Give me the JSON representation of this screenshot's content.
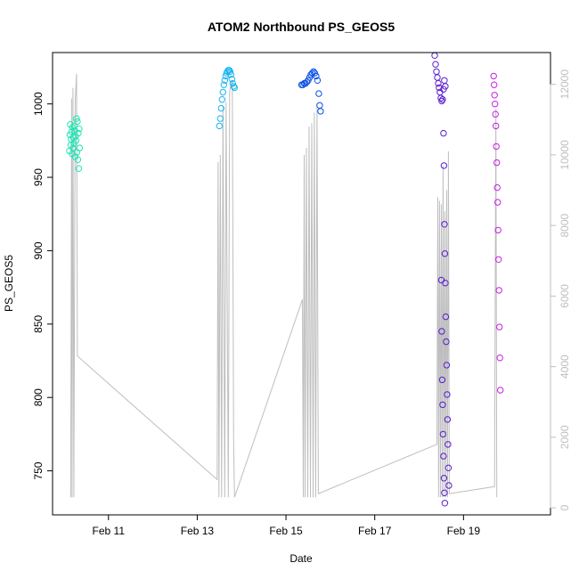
{
  "chart_data": {
    "type": "scatter",
    "title": "ATOM2 Northbound PS_GEOS5",
    "xlabel": "Date",
    "ylabel": "PS_GEOS5",
    "x_ticks": [
      {
        "label": "Feb 11",
        "value": 11.0
      },
      {
        "label": "Feb 13",
        "value": 13.0
      },
      {
        "label": "Feb 15",
        "value": 15.0
      },
      {
        "label": "Feb 17",
        "value": 17.0
      },
      {
        "label": "Feb 19",
        "value": 19.0
      }
    ],
    "xlim": [
      9.74,
      20.96
    ],
    "ylim": [
      720,
      1035
    ],
    "y_ticks": [
      {
        "label": "750",
        "value": 750
      },
      {
        "label": "800",
        "value": 800
      },
      {
        "label": "850",
        "value": 850
      },
      {
        "label": "900",
        "value": 900
      },
      {
        "label": "950",
        "value": 950
      },
      {
        "label": "1000",
        "value": 1000
      }
    ],
    "y2lim": [
      -200,
      12900
    ],
    "y2_ticks": [
      {
        "label": "0",
        "value": 0
      },
      {
        "label": "2000",
        "value": 2000
      },
      {
        "label": "4000",
        "value": 4000
      },
      {
        "label": "6000",
        "value": 6000
      },
      {
        "label": "8000",
        "value": 8000
      },
      {
        "label": "10000",
        "value": 10000
      },
      {
        "label": "12000",
        "value": 12000
      }
    ],
    "grid": false,
    "marker": "open-circle",
    "line_color": "#bebebe",
    "altitude_line": [
      [
        10.15,
        300
      ],
      [
        10.17,
        11600
      ],
      [
        10.18,
        300
      ],
      [
        10.2,
        11900
      ],
      [
        10.22,
        300
      ],
      [
        10.25,
        11500
      ],
      [
        10.28,
        12300
      ],
      [
        10.3,
        4300
      ],
      [
        13.45,
        800
      ],
      [
        13.47,
        9800
      ],
      [
        13.49,
        300
      ],
      [
        13.52,
        10000
      ],
      [
        13.55,
        300
      ],
      [
        13.58,
        11400
      ],
      [
        13.62,
        300
      ],
      [
        13.65,
        11500
      ],
      [
        13.7,
        300
      ],
      [
        13.73,
        11800
      ],
      [
        13.76,
        12000
      ],
      [
        13.79,
        12100
      ],
      [
        13.82,
        1700
      ],
      [
        13.84,
        300
      ],
      [
        15.37,
        5900
      ],
      [
        15.39,
        300
      ],
      [
        15.41,
        10000
      ],
      [
        15.43,
        300
      ],
      [
        15.46,
        10200
      ],
      [
        15.49,
        300
      ],
      [
        15.52,
        10800
      ],
      [
        15.55,
        300
      ],
      [
        15.58,
        10900
      ],
      [
        15.61,
        300
      ],
      [
        15.64,
        11200
      ],
      [
        15.67,
        300
      ],
      [
        15.7,
        11400
      ],
      [
        15.73,
        400
      ],
      [
        18.4,
        1800
      ],
      [
        18.42,
        8800
      ],
      [
        18.44,
        300
      ],
      [
        18.46,
        8700
      ],
      [
        18.48,
        300
      ],
      [
        18.5,
        8600
      ],
      [
        18.52,
        300
      ],
      [
        18.54,
        9700
      ],
      [
        18.56,
        300
      ],
      [
        18.58,
        8400
      ],
      [
        18.6,
        300
      ],
      [
        18.62,
        9000
      ],
      [
        18.64,
        300
      ],
      [
        18.66,
        10100
      ],
      [
        18.68,
        400
      ],
      [
        19.7,
        600
      ],
      [
        19.73,
        11300
      ],
      [
        19.75,
        300
      ]
    ],
    "series": [
      {
        "color": "#1ee6b4",
        "points": [
          [
            10.12,
            968
          ],
          [
            10.13,
            979
          ],
          [
            10.14,
            986
          ],
          [
            10.15,
            972
          ],
          [
            10.16,
            976
          ],
          [
            10.17,
            981
          ],
          [
            10.18,
            966
          ],
          [
            10.19,
            984
          ],
          [
            10.2,
            970
          ],
          [
            10.21,
            977
          ],
          [
            10.22,
            973
          ],
          [
            10.23,
            985
          ],
          [
            10.24,
            982
          ],
          [
            10.25,
            964
          ],
          [
            10.26,
            978
          ],
          [
            10.27,
            975
          ],
          [
            10.28,
            990
          ],
          [
            10.29,
            967
          ],
          [
            10.3,
            988
          ],
          [
            10.31,
            962
          ],
          [
            10.32,
            980
          ],
          [
            10.33,
            956
          ],
          [
            10.34,
            983
          ],
          [
            10.35,
            970
          ]
        ]
      },
      {
        "color": "#19b4f0",
        "points": [
          [
            13.5,
            985
          ],
          [
            13.52,
            990
          ],
          [
            13.54,
            997
          ],
          [
            13.56,
            1003
          ],
          [
            13.58,
            1008
          ],
          [
            13.6,
            1013
          ],
          [
            13.62,
            1016
          ],
          [
            13.64,
            1019
          ],
          [
            13.66,
            1021
          ],
          [
            13.68,
            1022
          ],
          [
            13.7,
            1023
          ],
          [
            13.72,
            1023
          ],
          [
            13.74,
            1022
          ],
          [
            13.76,
            1020
          ],
          [
            13.78,
            1017
          ],
          [
            13.8,
            1014
          ],
          [
            13.82,
            1012
          ],
          [
            13.84,
            1011
          ]
        ]
      },
      {
        "color": "#0a50e6",
        "points": [
          [
            15.35,
            1013
          ],
          [
            15.38,
            1013
          ],
          [
            15.41,
            1014
          ],
          [
            15.44,
            1014
          ],
          [
            15.47,
            1015
          ],
          [
            15.5,
            1016
          ],
          [
            15.53,
            1018
          ],
          [
            15.56,
            1020
          ],
          [
            15.59,
            1021
          ],
          [
            15.62,
            1022
          ],
          [
            15.65,
            1021
          ],
          [
            15.68,
            1019
          ],
          [
            15.71,
            1016
          ],
          [
            15.74,
            1007
          ],
          [
            15.76,
            999
          ],
          [
            15.78,
            995
          ]
        ]
      },
      {
        "color": "#5a1ed2",
        "points": [
          [
            18.35,
            1033
          ],
          [
            18.37,
            1027
          ],
          [
            18.39,
            1022
          ],
          [
            18.41,
            1018
          ],
          [
            18.43,
            1014
          ],
          [
            18.45,
            1011
          ],
          [
            18.47,
            1008
          ],
          [
            18.49,
            1004
          ],
          [
            18.51,
            1002
          ],
          [
            18.53,
            1003
          ],
          [
            18.55,
            1010
          ],
          [
            18.57,
            1016
          ],
          [
            18.59,
            1012
          ],
          [
            18.5,
            880
          ],
          [
            18.51,
            845
          ],
          [
            18.52,
            812
          ],
          [
            18.53,
            795
          ],
          [
            18.54,
            775
          ],
          [
            18.55,
            760
          ],
          [
            18.56,
            745
          ],
          [
            18.57,
            735
          ],
          [
            18.58,
            728
          ],
          [
            18.55,
            980
          ],
          [
            18.56,
            958
          ],
          [
            18.57,
            918
          ],
          [
            18.58,
            898
          ],
          [
            18.59,
            878
          ],
          [
            18.6,
            855
          ],
          [
            18.61,
            838
          ],
          [
            18.62,
            822
          ],
          [
            18.63,
            802
          ],
          [
            18.64,
            785
          ],
          [
            18.65,
            768
          ],
          [
            18.66,
            752
          ],
          [
            18.67,
            740
          ]
        ]
      },
      {
        "color": "#c81ee6",
        "points": [
          [
            19.68,
            1019
          ],
          [
            19.69,
            1013
          ],
          [
            19.7,
            1006
          ],
          [
            19.71,
            1000
          ],
          [
            19.72,
            993
          ],
          [
            19.73,
            985
          ],
          [
            19.74,
            971
          ],
          [
            19.75,
            960
          ],
          [
            19.76,
            943
          ],
          [
            19.77,
            933
          ],
          [
            19.78,
            914
          ],
          [
            19.79,
            894
          ],
          [
            19.8,
            873
          ],
          [
            19.81,
            848
          ],
          [
            19.82,
            827
          ],
          [
            19.83,
            805
          ]
        ]
      }
    ]
  }
}
